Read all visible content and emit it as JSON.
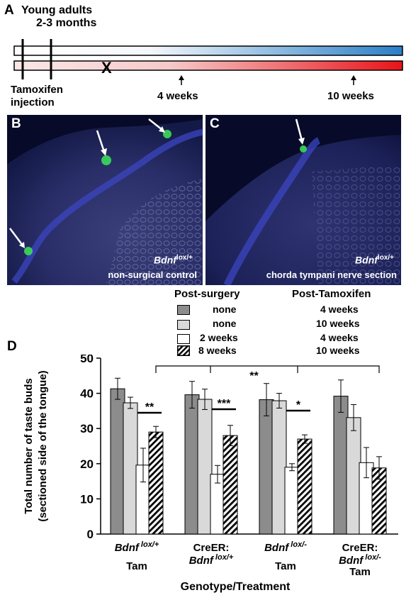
{
  "panel_a": {
    "letter": "A",
    "title_line1": "Young adults",
    "title_line2": "2-3 months",
    "injection_line1": "Tamoxifen",
    "injection_line2": "injection",
    "cross_mark": "X",
    "arrow_label_1": "4 weeks",
    "arrow_label_2": "10 weeks",
    "colors": {
      "bar_top_end": "#2a7fc8",
      "bar_bottom_end": "#e8141a"
    }
  },
  "panel_b": {
    "letter": "B",
    "gene": "Bdnf",
    "gene_sup": "lox/+",
    "condition": "non-surgical control"
  },
  "panel_c": {
    "letter": "C",
    "gene": "Bdnf",
    "gene_sup": "lox/+",
    "condition": "chorda tympani nerve section"
  },
  "legend": {
    "header_surgery": "Post-surgery",
    "header_tamoxifen": "Post-Tamoxifen",
    "rows": [
      {
        "surgery": "none",
        "tamoxifen": "4 weeks",
        "style": "dark-gray"
      },
      {
        "surgery": "none",
        "tamoxifen": "10 weeks",
        "style": "light-gray"
      },
      {
        "surgery": "2 weeks",
        "tamoxifen": "4 weeks",
        "style": "white"
      },
      {
        "surgery": "8 weeks",
        "tamoxifen": "10 weeks",
        "style": "hatched"
      }
    ]
  },
  "panel_d": {
    "letter": "D",
    "bracket_sig": "**",
    "group_labels": [
      {
        "line1": "Bdnf",
        "line1_sup": "lox/+",
        "line1_italic": true,
        "line2_prefix": "",
        "line2": "",
        "line2_sup": "",
        "line3": "Tam"
      },
      {
        "line1": "CreER:",
        "line1_sup": "",
        "line1_italic": false,
        "line2_prefix": "",
        "line2": "Bdnf",
        "line2_sup": "lox/+",
        "line3": ""
      },
      {
        "line1": "Bdnf",
        "line1_sup": "lox/-",
        "line1_italic": true,
        "line2_prefix": "",
        "line2": "",
        "line2_sup": "",
        "line3": "Tam"
      },
      {
        "line1": "CreER:",
        "line1_sup": "",
        "line1_italic": false,
        "line2_prefix": "",
        "line2": "Bdnf",
        "line2_sup": "lox/-",
        "line3": "Tam"
      }
    ]
  },
  "chart_data": {
    "type": "bar",
    "ylabel_line1": "Total number of taste buds",
    "ylabel_line2": "(sectioned side of the tongue)",
    "xlabel": "Genotype/Treatment",
    "ylim": [
      0,
      50
    ],
    "yticks": [
      0,
      10,
      20,
      30,
      40,
      50
    ],
    "categories": [
      "Bdnf lox/+ Tam",
      "CreER: Bdnf lox/+",
      "Bdnf lox/- Tam",
      "CreER: Bdnf lox/- Tam"
    ],
    "series": [
      {
        "name": "none / 4 weeks",
        "values": [
          41.3,
          39.6,
          38.2,
          39.2
        ],
        "errors": [
          3.0,
          3.8,
          4.6,
          4.6
        ]
      },
      {
        "name": "none / 10 weeks",
        "values": [
          37.3,
          38.3,
          37.9,
          33.1
        ],
        "errors": [
          1.6,
          2.9,
          2.1,
          3.7
        ]
      },
      {
        "name": "2 weeks / 4 weeks",
        "values": [
          19.6,
          17.0,
          19.0,
          20.3
        ],
        "errors": [
          4.8,
          2.5,
          1.0,
          4.3
        ]
      },
      {
        "name": "8 weeks / 10 weeks",
        "values": [
          29.0,
          28.0,
          27.0,
          18.8
        ],
        "errors": [
          1.6,
          2.9,
          1.2,
          3.2
        ]
      }
    ],
    "significance": [
      {
        "group": 0,
        "label": "**"
      },
      {
        "group": 1,
        "label": "***"
      },
      {
        "group": 2,
        "label": "*"
      }
    ]
  }
}
